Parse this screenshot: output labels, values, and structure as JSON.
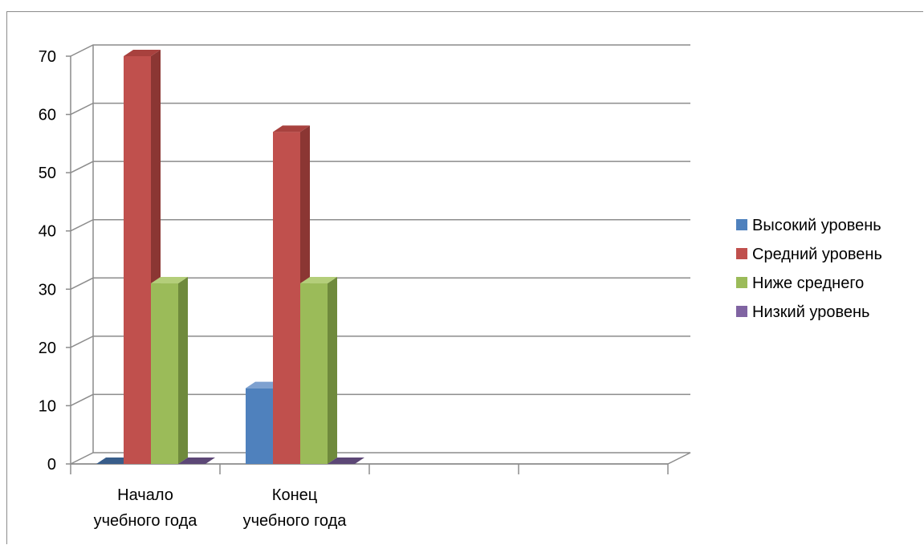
{
  "chart_data": {
    "type": "bar",
    "three_d": true,
    "categories": [
      [
        "Начало",
        "учебного года"
      ],
      [
        "Конец",
        "учебного года"
      ],
      [
        "",
        ""
      ],
      [
        "",
        ""
      ]
    ],
    "series": [
      {
        "name": "Высокий уровень",
        "values": [
          0,
          13,
          null,
          null
        ],
        "color": "#4f81bd",
        "color_dark": "#385d8a",
        "color_top": "#7ea1d0"
      },
      {
        "name": "Средний уровень",
        "values": [
          70,
          57,
          null,
          null
        ],
        "color": "#c0504d",
        "color_dark": "#8b3633",
        "color_top": "#a8413e"
      },
      {
        "name": "Ниже среднего",
        "values": [
          31,
          31,
          null,
          null
        ],
        "color": "#9bbb59",
        "color_dark": "#6f8a3c",
        "color_top": "#b4ce7a"
      },
      {
        "name": "Низкий уровень",
        "values": [
          0,
          0,
          null,
          null
        ],
        "color": "#8064a2",
        "color_dark": "#5c4776",
        "color_top": "#9a82b8"
      }
    ],
    "yticks": [
      0,
      10,
      20,
      30,
      40,
      50,
      60,
      70
    ],
    "ylim": [
      0,
      70
    ],
    "grid": true,
    "legend": "right",
    "title": "",
    "xlabel": "",
    "ylabel": ""
  }
}
